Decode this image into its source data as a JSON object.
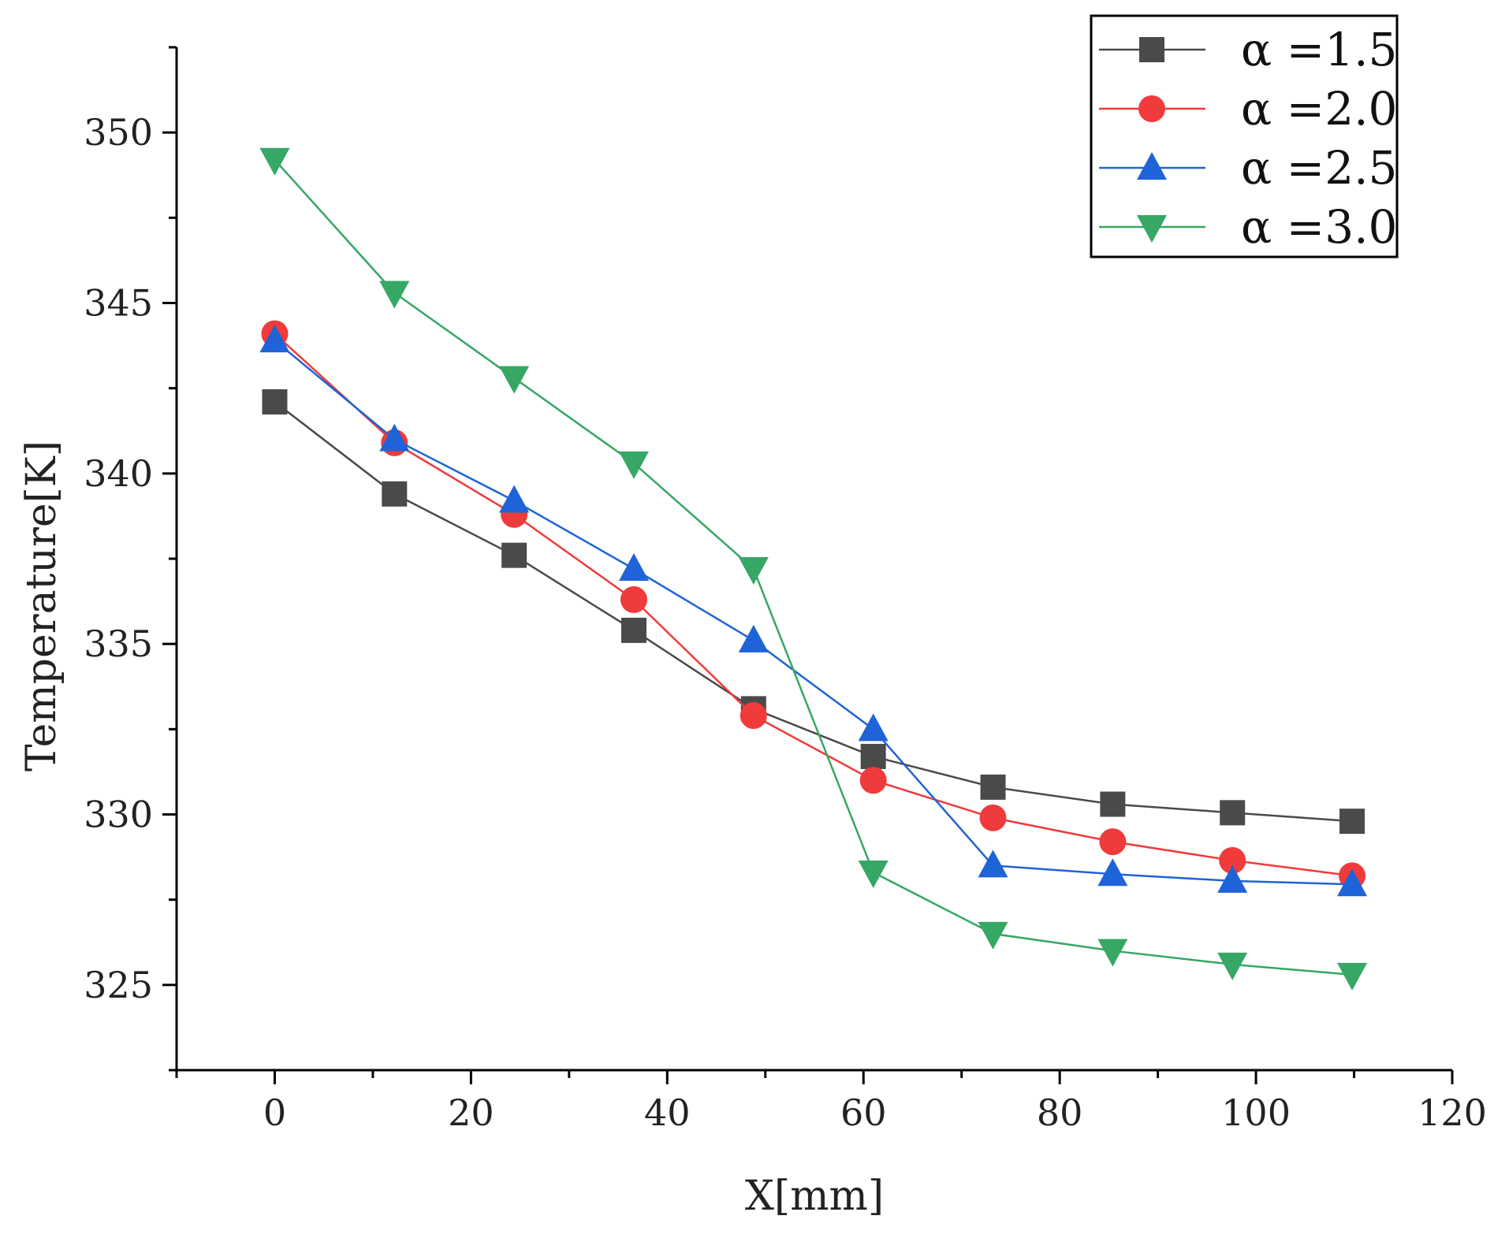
{
  "chart_data": {
    "type": "line",
    "title": "",
    "xlabel": "X[mm]",
    "ylabel": "Temperature[K]",
    "xlim": [
      -10,
      120
    ],
    "ylim": [
      322.5,
      352.5
    ],
    "xticks": [
      0,
      20,
      40,
      60,
      80,
      100,
      120
    ],
    "yticks": [
      325,
      330,
      335,
      340,
      345,
      350
    ],
    "xtick_labels": [
      "0",
      "20",
      "40",
      "60",
      "80",
      "100",
      "120"
    ],
    "ytick_labels": [
      "325",
      "330",
      "335",
      "340",
      "345",
      "350"
    ],
    "grid": false,
    "legend_position": "top-right",
    "x": [
      0,
      12.2,
      24.4,
      36.6,
      48.8,
      61.0,
      73.2,
      85.4,
      97.6,
      109.8
    ],
    "series": [
      {
        "name": "α =1.5",
        "marker": "square",
        "color": "#4a4a4a",
        "values": [
          342.1,
          339.4,
          337.6,
          335.4,
          333.1,
          331.7,
          330.8,
          330.3,
          330.05,
          329.8
        ]
      },
      {
        "name": "α =2.0",
        "marker": "circle",
        "color": "#ef3b3b",
        "values": [
          344.1,
          340.9,
          338.8,
          336.3,
          332.9,
          331.0,
          329.9,
          329.2,
          328.65,
          328.2
        ]
      },
      {
        "name": "α =2.5",
        "marker": "triangle-up",
        "color": "#1f63d8",
        "values": [
          343.9,
          341.0,
          339.2,
          337.2,
          335.1,
          332.5,
          328.5,
          328.25,
          328.05,
          327.95
        ]
      },
      {
        "name": "α =3.0",
        "marker": "triangle-down",
        "color": "#36a764",
        "values": [
          349.2,
          345.3,
          342.8,
          340.3,
          337.2,
          328.3,
          326.5,
          326.0,
          325.6,
          325.3
        ]
      }
    ]
  }
}
